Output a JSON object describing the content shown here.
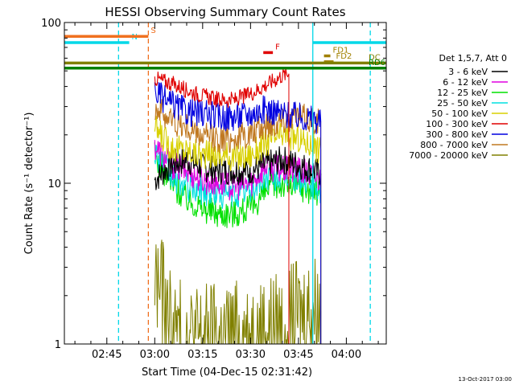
{
  "chart_data": {
    "type": "line",
    "title": "HESSI Observing Summary Count Rates",
    "xlabel": "Start Time (04-Dec-15 02:31:42)",
    "ylabel": "Count Rate (s⁻¹ detector⁻¹)",
    "y_scale": "log",
    "ylim": [
      1,
      100
    ],
    "xlim": [
      "02:31:42",
      "04:12:30"
    ],
    "x_ticks": [
      "02:45",
      "03:00",
      "03:15",
      "03:30",
      "03:45",
      "04:00"
    ],
    "y_ticks": [
      "1",
      "10",
      "100"
    ],
    "footer_date": "13-Oct-2017 03:00",
    "legend": {
      "header": "Det 1,5,7, Att 0",
      "placement": "right"
    },
    "series": [
      {
        "name": "3 - 6 keV",
        "color": "#000000",
        "x": [
          "02:55",
          "03:00",
          "03:05",
          "03:10",
          "03:15",
          "03:20",
          "03:25",
          "03:30",
          "03:35",
          "03:40",
          "03:45",
          "03:50",
          "03:52"
        ],
        "values": [
          null,
          10.5,
          13,
          14,
          12.5,
          12,
          12,
          12,
          13,
          14,
          13,
          12,
          11.5
        ]
      },
      {
        "name": "6 - 12 keV",
        "color": "#e000e0",
        "x": [
          "03:00",
          "03:05",
          "03:10",
          "03:15",
          "03:20",
          "03:25",
          "03:30",
          "03:35",
          "03:40",
          "03:45",
          "03:50",
          "03:52"
        ],
        "values": [
          17,
          13,
          12,
          10.5,
          10,
          9.5,
          10,
          13,
          12,
          12,
          11,
          10.5
        ]
      },
      {
        "name": "12 - 25 keV",
        "color": "#00e000",
        "x": [
          "03:00",
          "03:05",
          "03:10",
          "03:15",
          "03:20",
          "03:25",
          "03:30",
          "03:35",
          "03:40",
          "03:45",
          "03:50",
          "03:52"
        ],
        "values": [
          15,
          10,
          8,
          7,
          6.5,
          6.5,
          7,
          9,
          10,
          9.5,
          9,
          8.5
        ]
      },
      {
        "name": "25 - 50 keV",
        "color": "#00e0e0",
        "x": [
          "03:00",
          "03:05",
          "03:10",
          "03:15",
          "03:20",
          "03:25",
          "03:30",
          "03:35",
          "03:40",
          "03:45",
          "03:50",
          "03:52"
        ],
        "values": [
          16,
          11,
          9.5,
          9,
          8.5,
          8.5,
          9,
          11,
          11,
          10.5,
          9.5,
          9
        ]
      },
      {
        "name": "50 - 100 keV",
        "color": "#d8d000",
        "x": [
          "03:00",
          "03:05",
          "03:10",
          "03:15",
          "03:20",
          "03:25",
          "03:30",
          "03:35",
          "03:40",
          "03:45",
          "03:50",
          "03:52"
        ],
        "values": [
          22,
          17,
          16,
          15,
          15,
          14.5,
          15,
          18,
          20,
          19,
          17,
          16
        ]
      },
      {
        "name": "100 - 300 keV",
        "color": "#e00000",
        "x": [
          "03:00",
          "03:05",
          "03:10",
          "03:15",
          "03:20",
          "03:25",
          "03:30",
          "03:35",
          "03:40",
          "03:42"
        ],
        "values": [
          45,
          42,
          38,
          35,
          33,
          33,
          36,
          41,
          47,
          48
        ]
      },
      {
        "name": "300 - 800 keV",
        "color": "#0000e0",
        "x": [
          "03:00",
          "03:05",
          "03:10",
          "03:15",
          "03:20",
          "03:25",
          "03:30",
          "03:35",
          "03:40",
          "03:45",
          "03:50",
          "03:52"
        ],
        "values": [
          37,
          31,
          28,
          27,
          26,
          26,
          27,
          29,
          27,
          26,
          25,
          24
        ]
      },
      {
        "name": "800 - 7000 keV",
        "color": "#c07820",
        "x": [
          "03:00",
          "03:05",
          "03:10",
          "03:15",
          "03:20",
          "03:25",
          "03:30",
          "03:35",
          "03:40",
          "03:45",
          "03:50",
          "03:52"
        ],
        "values": [
          30,
          25,
          22,
          19.5,
          19,
          19,
          20,
          23,
          25,
          26,
          25,
          24
        ]
      },
      {
        "name": "7000 - 20000 keV",
        "color": "#808000",
        "x": [
          "03:00",
          "03:02",
          "03:04",
          "03:06",
          "03:10",
          "03:20",
          "03:30",
          "03:40",
          "03:45",
          "03:50",
          "03:52"
        ],
        "values": [
          2.5,
          2.2,
          1.5,
          1.2,
          1.1,
          1.1,
          1.15,
          1.3,
          1.5,
          1.7,
          1.6
        ]
      }
    ],
    "annotations": {
      "flags": [
        {
          "label": "N",
          "color": "#00d8e8",
          "x_start": "02:31:42",
          "x_end": "02:52",
          "y": 75
        },
        {
          "label": "S",
          "color": "#f07020",
          "x_start": "02:31:42",
          "x_end": "02:58",
          "y": 82
        },
        {
          "label": "F",
          "color": "#e00000",
          "x_start": "03:34",
          "x_end": "03:37",
          "y": 65
        },
        {
          "label": "FD1",
          "color": "#a08000",
          "x_start": "03:53",
          "x_end": "03:55",
          "y": 62
        },
        {
          "label": "FD2",
          "color": "#a08000",
          "x_start": "03:53",
          "x_end": "03:56",
          "y": 57
        },
        {
          "label": "DC",
          "color": "#808000",
          "x_start": "02:31:42",
          "x_end": "04:12:30",
          "y": 56
        },
        {
          "label": "RD6",
          "color": "#008000",
          "x_start": "02:31:42",
          "x_end": "04:12:30",
          "y": 52
        }
      ],
      "vlines": [
        {
          "time": "02:48:40",
          "color": "#00d8e8",
          "style": "dashed"
        },
        {
          "time": "02:58:00",
          "color": "#f07020",
          "style": "dashed"
        },
        {
          "time": "03:49:30",
          "color": "#00d8e8",
          "style": "solid"
        },
        {
          "time": "04:07:30",
          "color": "#00d8e8",
          "style": "dashed"
        }
      ]
    }
  }
}
